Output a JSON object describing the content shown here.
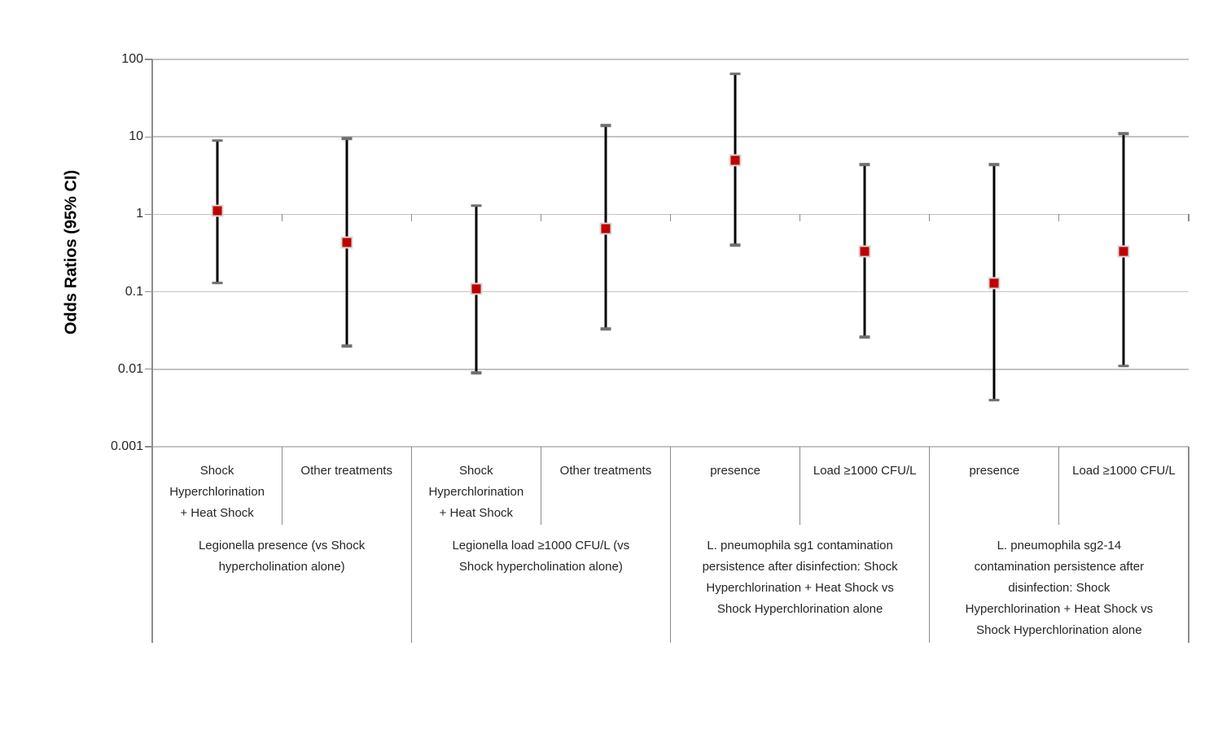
{
  "chart_data": {
    "type": "scatter",
    "subtype": "forest-plot-odds-ratios-with-95ci-error-bars",
    "title": "",
    "ylabel": "Odds Ratios (95% CI)",
    "y_scale": "log",
    "ylim": [
      0.001,
      100
    ],
    "yticks": [
      "100",
      "10",
      "1",
      "0.1",
      "0.01",
      "0.001"
    ],
    "grid": "horizontal-on",
    "legend": "none",
    "groups": [
      {
        "label": "Legionella presence (vs Shock\nhypercholination alone)",
        "categories": [
          "Shock\nHyperchlorination\n+ Heat Shock",
          "Other treatments"
        ]
      },
      {
        "label": "Legionella load ≥1000 CFU/L (vs\nShock hypercholination alone)",
        "categories": [
          "Shock\nHyperchlorination\n+ Heat Shock",
          "Other treatments"
        ]
      },
      {
        "label": "L. pneumophila sg1 contamination\npersistence after disinfection: Shock\nHyperchlorination + Heat Shock vs\nShock Hyperchlorination alone",
        "categories": [
          "presence",
          "Load ≥1000 CFU/L"
        ]
      },
      {
        "label": "L. pneumophila sg2-14\ncontamination persistence after\ndisinfection: Shock\nHyperchlorination + Heat Shock vs\nShock Hyperchlorination alone",
        "categories": [
          "presence",
          "Load ≥1000 CFU/L"
        ]
      }
    ],
    "points": [
      {
        "group": 1,
        "category": "Shock Hyperchlorination + Heat Shock",
        "odds_ratio": 1.1,
        "ci_low": 0.13,
        "ci_high": 9
      },
      {
        "group": 1,
        "category": "Other treatments",
        "odds_ratio": 0.43,
        "ci_low": 0.02,
        "ci_high": 9.5
      },
      {
        "group": 2,
        "category": "Shock Hyperchlorination + Heat Shock",
        "odds_ratio": 0.11,
        "ci_low": 0.009,
        "ci_high": 1.3
      },
      {
        "group": 2,
        "category": "Other treatments",
        "odds_ratio": 0.65,
        "ci_low": 0.033,
        "ci_high": 14
      },
      {
        "group": 3,
        "category": "presence",
        "odds_ratio": 5,
        "ci_low": 0.4,
        "ci_high": 65
      },
      {
        "group": 3,
        "category": "Load ≥1000 CFU/L",
        "odds_ratio": 0.33,
        "ci_low": 0.026,
        "ci_high": 4.4
      },
      {
        "group": 4,
        "category": "presence",
        "odds_ratio": 0.13,
        "ci_low": 0.004,
        "ci_high": 4.4
      },
      {
        "group": 4,
        "category": "Load ≥1000 CFU/L",
        "odds_ratio": 0.33,
        "ci_low": 0.011,
        "ci_high": 11
      }
    ],
    "colors": {
      "marker": "#c00000",
      "marker_border": "#d9d9d9",
      "error_bar": "#000000",
      "error_cap": "#6f6f6f",
      "gridline": "#c3c3c3",
      "axis": "#8c8c8c",
      "text": "#262626"
    }
  }
}
